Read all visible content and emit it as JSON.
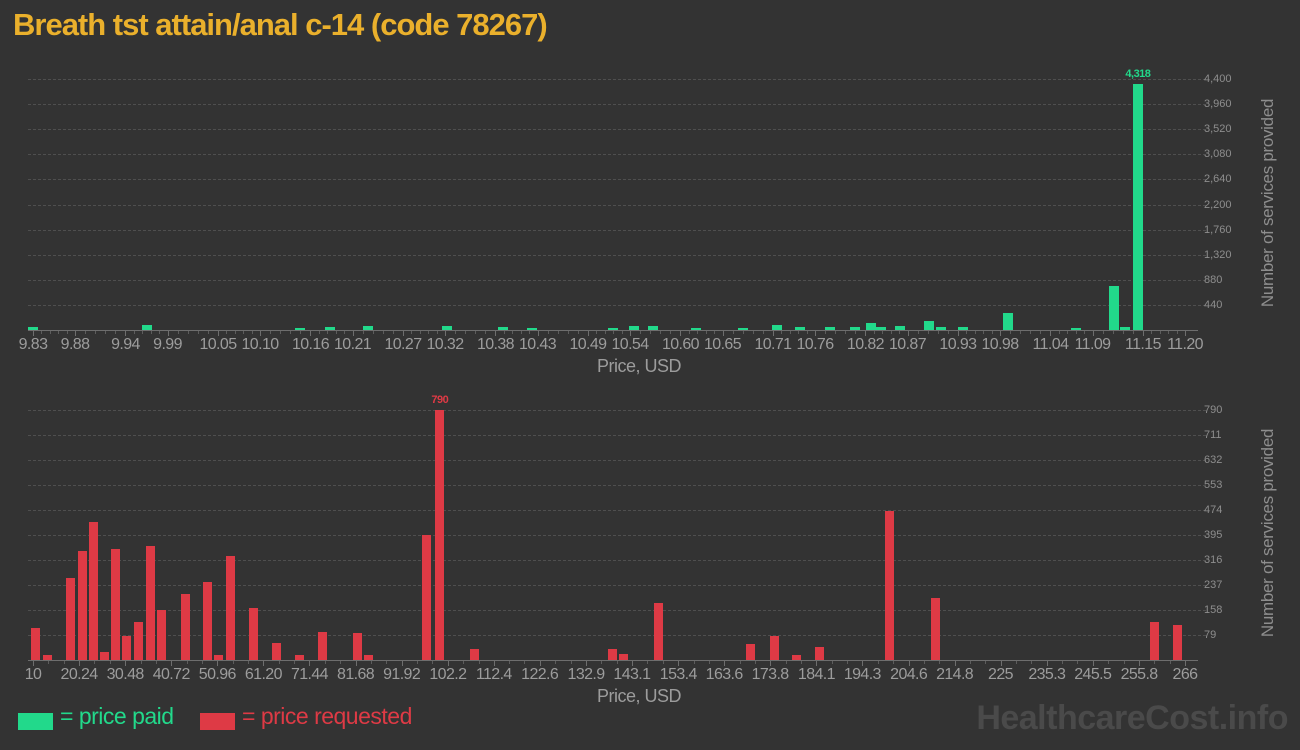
{
  "title": "Breath tst attain/anal c-14 (code 78267)",
  "watermark": "HealthcareCost.info",
  "legend": {
    "paid_label": "= price paid",
    "requested_label": "= price requested"
  },
  "colors": {
    "background": "#333333",
    "title": "#eab02c",
    "paid": "#22d98b",
    "requested": "#de3a45",
    "axis_text": "#9c9c9c",
    "right_axis_text": "#8e8e8e",
    "grid": "#4f4f4f",
    "watermark": "#4a4a4a"
  },
  "chart_data": [
    {
      "type": "bar",
      "name": "price paid",
      "color": "#22d98b",
      "xlabel": "Price, USD",
      "ylabel": "Number of services provided",
      "xlim": [
        9.83,
        11.2
      ],
      "ylim": [
        0,
        4400
      ],
      "grid": "dashed horizontal",
      "legend_position": "bottom-left",
      "xticks": [
        {
          "value": 9.83,
          "label": "9.83"
        },
        {
          "value": 9.88,
          "label": "9.88"
        },
        {
          "value": 9.94,
          "label": "9.94"
        },
        {
          "value": 9.99,
          "label": "9.99"
        },
        {
          "value": 10.05,
          "label": "10.05"
        },
        {
          "value": 10.1,
          "label": "10.10"
        },
        {
          "value": 10.16,
          "label": "10.16"
        },
        {
          "value": 10.21,
          "label": "10.21"
        },
        {
          "value": 10.27,
          "label": "10.27"
        },
        {
          "value": 10.32,
          "label": "10.32"
        },
        {
          "value": 10.38,
          "label": "10.38"
        },
        {
          "value": 10.43,
          "label": "10.43"
        },
        {
          "value": 10.49,
          "label": "10.49"
        },
        {
          "value": 10.54,
          "label": "10.54"
        },
        {
          "value": 10.6,
          "label": "10.60"
        },
        {
          "value": 10.65,
          "label": "10.65"
        },
        {
          "value": 10.71,
          "label": "10.71"
        },
        {
          "value": 10.76,
          "label": "10.76"
        },
        {
          "value": 10.82,
          "label": "10.82"
        },
        {
          "value": 10.87,
          "label": "10.87"
        },
        {
          "value": 10.93,
          "label": "10.93"
        },
        {
          "value": 10.98,
          "label": "10.98"
        },
        {
          "value": 11.04,
          "label": "11.04"
        },
        {
          "value": 11.09,
          "label": "11.09"
        },
        {
          "value": 11.15,
          "label": "11.15"
        },
        {
          "value": 11.2,
          "label": "11.20"
        }
      ],
      "yticks": [
        {
          "value": 440,
          "label": "440"
        },
        {
          "value": 880,
          "label": "880"
        },
        {
          "value": 1320,
          "label": "1,320"
        },
        {
          "value": 1760,
          "label": "1,760"
        },
        {
          "value": 2200,
          "label": "2,200"
        },
        {
          "value": 2640,
          "label": "2,640"
        },
        {
          "value": 3080,
          "label": "3,080"
        },
        {
          "value": 3520,
          "label": "3,520"
        },
        {
          "value": 3960,
          "label": "3,960"
        },
        {
          "value": 4400,
          "label": "4,400"
        }
      ],
      "bars": [
        {
          "x": 9.83,
          "y": 60
        },
        {
          "x": 9.966,
          "y": 80
        },
        {
          "x": 10.147,
          "y": 40
        },
        {
          "x": 10.183,
          "y": 45
        },
        {
          "x": 10.228,
          "y": 65
        },
        {
          "x": 10.322,
          "y": 70
        },
        {
          "x": 10.389,
          "y": 50
        },
        {
          "x": 10.424,
          "y": 40
        },
        {
          "x": 10.52,
          "y": 30
        },
        {
          "x": 10.545,
          "y": 75
        },
        {
          "x": 10.567,
          "y": 75
        },
        {
          "x": 10.619,
          "y": 35
        },
        {
          "x": 10.674,
          "y": 40
        },
        {
          "x": 10.715,
          "y": 80
        },
        {
          "x": 10.742,
          "y": 45
        },
        {
          "x": 10.778,
          "y": 60
        },
        {
          "x": 10.808,
          "y": 60
        },
        {
          "x": 10.827,
          "y": 130
        },
        {
          "x": 10.838,
          "y": 45
        },
        {
          "x": 10.861,
          "y": 65
        },
        {
          "x": 10.895,
          "y": 150
        },
        {
          "x": 10.91,
          "y": 50
        },
        {
          "x": 10.936,
          "y": 55
        },
        {
          "x": 10.99,
          "y": 290
        },
        {
          "x": 11.07,
          "y": 35
        },
        {
          "x": 11.115,
          "y": 770
        },
        {
          "x": 11.129,
          "y": 50
        },
        {
          "x": 11.144,
          "y": 4318
        }
      ],
      "peak_label": {
        "x": 11.144,
        "y": 4318,
        "text": "4,318"
      }
    },
    {
      "type": "bar",
      "name": "price requested",
      "color": "#de3a45",
      "xlabel": "Price, USD",
      "ylabel": "Number of services provided",
      "xlim": [
        10,
        266
      ],
      "ylim": [
        0,
        790
      ],
      "grid": "dashed horizontal",
      "legend_position": "bottom-left",
      "xticks": [
        {
          "value": 10,
          "label": "10"
        },
        {
          "value": 20.24,
          "label": "20.24"
        },
        {
          "value": 30.48,
          "label": "30.48"
        },
        {
          "value": 40.72,
          "label": "40.72"
        },
        {
          "value": 50.96,
          "label": "50.96"
        },
        {
          "value": 61.2,
          "label": "61.20"
        },
        {
          "value": 71.44,
          "label": "71.44"
        },
        {
          "value": 81.68,
          "label": "81.68"
        },
        {
          "value": 91.92,
          "label": "91.92"
        },
        {
          "value": 102.2,
          "label": "102.2"
        },
        {
          "value": 112.4,
          "label": "112.4"
        },
        {
          "value": 122.6,
          "label": "122.6"
        },
        {
          "value": 132.9,
          "label": "132.9"
        },
        {
          "value": 143.1,
          "label": "143.1"
        },
        {
          "value": 153.4,
          "label": "153.4"
        },
        {
          "value": 163.6,
          "label": "163.6"
        },
        {
          "value": 173.8,
          "label": "173.8"
        },
        {
          "value": 184.1,
          "label": "184.1"
        },
        {
          "value": 194.3,
          "label": "194.3"
        },
        {
          "value": 204.6,
          "label": "204.6"
        },
        {
          "value": 214.8,
          "label": "214.8"
        },
        {
          "value": 225,
          "label": "225"
        },
        {
          "value": 235.3,
          "label": "235.3"
        },
        {
          "value": 245.5,
          "label": "245.5"
        },
        {
          "value": 255.8,
          "label": "255.8"
        },
        {
          "value": 266,
          "label": "266"
        }
      ],
      "yticks": [
        {
          "value": 79,
          "label": "79"
        },
        {
          "value": 158,
          "label": "158"
        },
        {
          "value": 237,
          "label": "237"
        },
        {
          "value": 316,
          "label": "316"
        },
        {
          "value": 395,
          "label": "395"
        },
        {
          "value": 474,
          "label": "474"
        },
        {
          "value": 553,
          "label": "553"
        },
        {
          "value": 632,
          "label": "632"
        },
        {
          "value": 711,
          "label": "711"
        },
        {
          "value": 790,
          "label": "790"
        }
      ],
      "bars": [
        {
          "x": 10.6,
          "y": 100
        },
        {
          "x": 13.2,
          "y": 15
        },
        {
          "x": 18.4,
          "y": 260
        },
        {
          "x": 21.0,
          "y": 345
        },
        {
          "x": 23.4,
          "y": 435
        },
        {
          "x": 25.9,
          "y": 25
        },
        {
          "x": 28.4,
          "y": 350
        },
        {
          "x": 30.8,
          "y": 76
        },
        {
          "x": 33.5,
          "y": 120
        },
        {
          "x": 36.1,
          "y": 360
        },
        {
          "x": 38.5,
          "y": 158
        },
        {
          "x": 43.8,
          "y": 210
        },
        {
          "x": 48.7,
          "y": 245
        },
        {
          "x": 51.3,
          "y": 15
        },
        {
          "x": 53.9,
          "y": 330
        },
        {
          "x": 59.1,
          "y": 165
        },
        {
          "x": 64.2,
          "y": 55
        },
        {
          "x": 69.3,
          "y": 15
        },
        {
          "x": 74.4,
          "y": 90
        },
        {
          "x": 82.1,
          "y": 85
        },
        {
          "x": 84.5,
          "y": 15
        },
        {
          "x": 97.5,
          "y": 395
        },
        {
          "x": 100.4,
          "y": 790
        },
        {
          "x": 108,
          "y": 35
        },
        {
          "x": 138.7,
          "y": 35
        },
        {
          "x": 141.3,
          "y": 20
        },
        {
          "x": 149,
          "y": 180
        },
        {
          "x": 169.4,
          "y": 50
        },
        {
          "x": 174.7,
          "y": 75
        },
        {
          "x": 179.7,
          "y": 15
        },
        {
          "x": 184.7,
          "y": 40
        },
        {
          "x": 200.4,
          "y": 470
        },
        {
          "x": 210.5,
          "y": 195
        },
        {
          "x": 259.2,
          "y": 120
        },
        {
          "x": 264.3,
          "y": 110
        }
      ],
      "peak_label": {
        "x": 100.4,
        "y": 790,
        "text": "790"
      }
    }
  ]
}
